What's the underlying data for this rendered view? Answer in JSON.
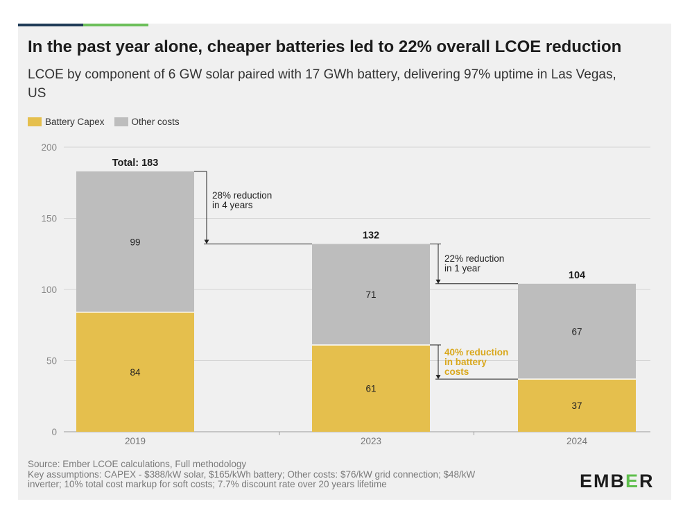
{
  "header": {
    "title": "In the past year alone, cheaper batteries led to 22% overall LCOE reduction",
    "subtitle": "LCOE by component of 6 GW solar paired with 17 GWh battery, delivering 97% uptime in Las Vegas, US"
  },
  "colors": {
    "battery": "#e5bf4d",
    "other": "#bdbdbd",
    "annotation_battery": "#d9a71b",
    "accent_dark": "#1f3b57",
    "accent_green": "#6cbf5a"
  },
  "chart_data": {
    "type": "bar",
    "stacked": true,
    "categories": [
      "2019",
      "2023",
      "2024"
    ],
    "series": [
      {
        "name": "Battery Capex",
        "values": [
          84,
          61,
          37
        ]
      },
      {
        "name": "Other costs",
        "values": [
          99,
          71,
          67
        ]
      }
    ],
    "totals": [
      "Total: 183",
      "132",
      "104"
    ],
    "ylim": [
      0,
      200
    ],
    "yticks": [
      "0",
      "50",
      "100",
      "150",
      "200"
    ],
    "title": "In the past year alone, cheaper batteries led to 22% overall LCOE reduction",
    "legend_position": "top-left",
    "annotations": [
      {
        "lines": [
          "28% reduction",
          "in 4 years"
        ]
      },
      {
        "lines": [
          "22% reduction",
          "in 1 year"
        ]
      },
      {
        "lines": [
          "40% reduction",
          "in battery",
          "costs"
        ]
      }
    ]
  },
  "footer": {
    "source": "Source: Ember LCOE calculations, Full methodology",
    "assumptions_1": "Key assumptions: CAPEX - $388/kW solar, $165/kWh battery; Other costs: $76/kW grid connection; $48/kW",
    "assumptions_2": "inverter; 10% total cost markup for soft costs; 7.7% discount rate over 20 years lifetime"
  },
  "logo": {
    "pre": "EMB",
    "highlight": "E",
    "post": "R"
  }
}
